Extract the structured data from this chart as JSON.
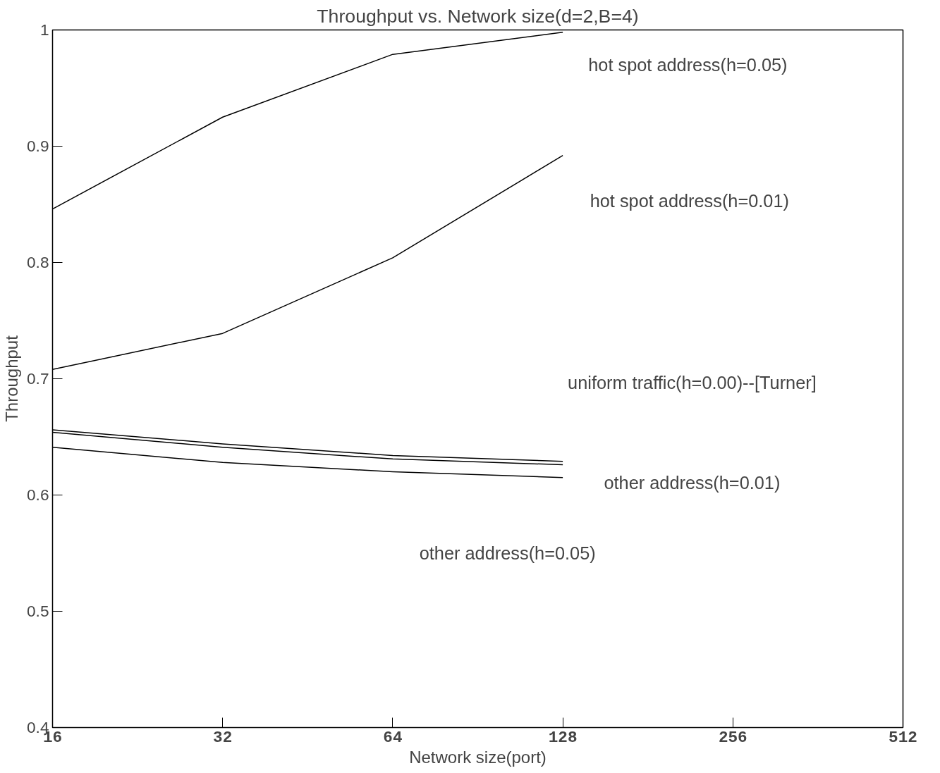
{
  "chart_data": {
    "type": "line",
    "title": "Throughput vs. Network size(d=2,B=4)",
    "xlabel": "Network size(port)",
    "ylabel": "Throughput",
    "x": [
      16,
      32,
      64,
      128
    ],
    "log": "x",
    "xlim": [
      16,
      512
    ],
    "xticks": [
      16,
      32,
      64,
      128,
      256,
      512
    ],
    "ylim": [
      0.4,
      1
    ],
    "yticks": [
      0.4,
      0.5,
      0.6,
      0.7,
      0.8,
      0.9,
      1
    ],
    "grid": false,
    "marker": "none",
    "line_style": "solid",
    "series": [
      {
        "color": "#000000",
        "values": [
          0.846,
          0.925,
          0.979,
          0.998
        ]
      },
      {
        "color": "#000000",
        "values": [
          0.708,
          0.739,
          0.804,
          0.892
        ]
      },
      {
        "color": "#000000",
        "values": [
          0.656,
          0.644,
          0.634,
          0.629
        ]
      },
      {
        "color": "#000000",
        "values": [
          0.654,
          0.641,
          0.631,
          0.626
        ]
      },
      {
        "color": "#000000",
        "values": [
          0.641,
          0.628,
          0.62,
          0.615
        ]
      }
    ],
    "annotations": [
      "hot spot address(h=0.05)",
      "hot spot address(h=0.01)",
      "uniform traffic(h=0.00)--[Turner]",
      "other address(h=0.01)",
      "other address(h=0.05)"
    ]
  }
}
